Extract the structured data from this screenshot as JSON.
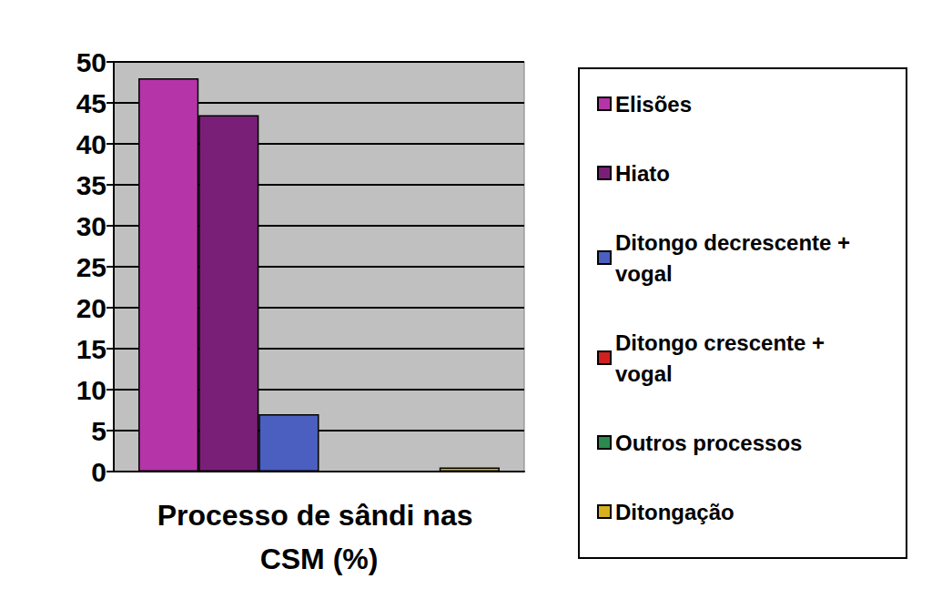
{
  "chart_data": {
    "type": "bar",
    "categories": [
      "Processo de sândi nas CSM (%)"
    ],
    "series": [
      {
        "name": "Elisões",
        "color": "#b535a8",
        "values": [
          48
        ]
      },
      {
        "name": "Hiato",
        "color": "#7a1f78",
        "values": [
          43.5
        ]
      },
      {
        "name": "Ditongo decrescente + vogal",
        "color": "#4a5fbf",
        "values": [
          7
        ]
      },
      {
        "name": "Ditongo crescente + vogal",
        "color": "#d02020",
        "values": [
          0
        ]
      },
      {
        "name": "Outros processos",
        "color": "#2a8a50",
        "values": [
          0
        ]
      },
      {
        "name": "Ditongação",
        "color": "#d8b020",
        "values": [
          0.5
        ]
      }
    ],
    "ylim": [
      0,
      50
    ],
    "yticks": [
      0,
      5,
      10,
      15,
      20,
      25,
      30,
      35,
      40,
      45,
      50
    ],
    "grid": true,
    "legend": "right"
  }
}
